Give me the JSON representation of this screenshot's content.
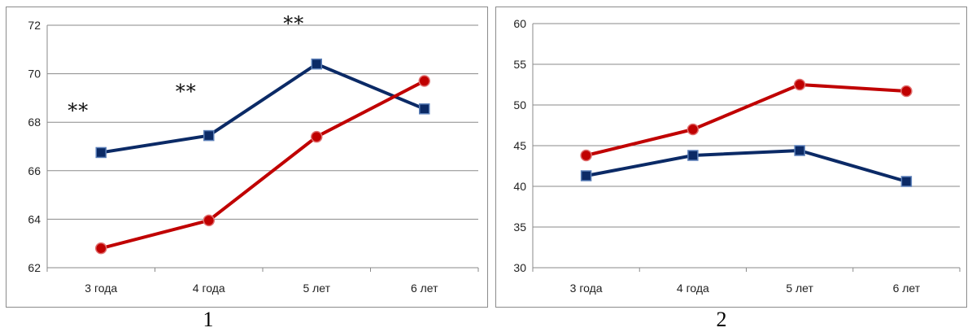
{
  "chart_data": [
    {
      "type": "line",
      "panel_label": "1",
      "categories": [
        "3 года",
        "4 года",
        "5 лет",
        "6 лет"
      ],
      "ylim": [
        62,
        72
      ],
      "yticks": [
        62,
        64,
        66,
        68,
        70,
        72
      ],
      "grid": true,
      "series": [
        {
          "color": "#0b2a66",
          "marker": "square",
          "values": [
            66.75,
            67.45,
            70.4,
            68.55
          ]
        },
        {
          "color": "#c00000",
          "marker": "circle",
          "values": [
            62.8,
            63.95,
            67.4,
            69.7
          ]
        }
      ],
      "annotations": [
        {
          "text": "**",
          "category": "3 года",
          "value": 68.2
        },
        {
          "text": "**",
          "category": "4 года",
          "value": 69.0
        },
        {
          "text": "**",
          "category": "5 лет",
          "value": 71.8
        }
      ]
    },
    {
      "type": "line",
      "panel_label": "2",
      "categories": [
        "3 года",
        "4 года",
        "5 лет",
        "6 лет"
      ],
      "ylim": [
        30,
        60
      ],
      "yticks": [
        30,
        35,
        40,
        45,
        50,
        55,
        60
      ],
      "grid": true,
      "series": [
        {
          "color": "#0b2a66",
          "marker": "square",
          "values": [
            41.3,
            43.8,
            44.4,
            40.6
          ]
        },
        {
          "color": "#c00000",
          "marker": "circle",
          "values": [
            43.8,
            47.0,
            52.5,
            51.7
          ]
        }
      ],
      "annotations": []
    }
  ]
}
